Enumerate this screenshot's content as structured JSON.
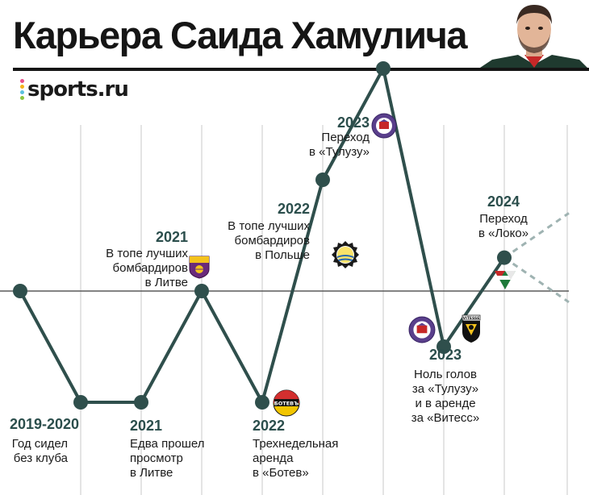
{
  "title": "Карьера Саида Хамулича",
  "brand": {
    "name": "sports.ru",
    "dot_colors": [
      "#e84e8a",
      "#f6b21a",
      "#5bc0de",
      "#8cc63f"
    ]
  },
  "colors": {
    "line": "#2f4f4c",
    "point": "#2f4f4c",
    "baseline": "#5a5a5a",
    "grid": "#c8c8c8",
    "projection": "#9fb3b2",
    "year": "#2b4e4c"
  },
  "chart_data": {
    "type": "line",
    "series": [
      {
        "points": [
          {
            "x": "",
            "y": 0
          },
          {
            "x": "2019-2020",
            "y": -1
          },
          {
            "x": "2021",
            "y": -1
          },
          {
            "x": "2021",
            "y": 0
          },
          {
            "x": "2022",
            "y": -1
          },
          {
            "x": "2022",
            "y": 1
          },
          {
            "x": "2023",
            "y": 2
          },
          {
            "x": "2023",
            "y": -0.5
          },
          {
            "x": "2024",
            "y": 0.3
          }
        ]
      }
    ],
    "projection": {
      "from": "2024",
      "y_range": [
        -0.1,
        0.7
      ],
      "style": "dashed"
    },
    "baseline_y": 0,
    "grid": true
  },
  "events": [
    {
      "year": "2019-2020",
      "lines": [
        "Год сидел",
        "без клуба"
      ],
      "badge": null
    },
    {
      "year": "2021",
      "lines": [
        "Едва прошел",
        "просмотр",
        "в Литве"
      ],
      "badge": null
    },
    {
      "year": "2021",
      "lines": [
        "В топе лучших",
        "бомбардиров",
        "в Литве"
      ],
      "badge": {
        "icon": "banga-crest-icon",
        "text": "BANGA GARGŽDAI"
      }
    },
    {
      "year": "2022",
      "lines": [
        "Трехнедельная",
        "аренда",
        "в «Ботев»"
      ],
      "badge": {
        "icon": "botev-crest-icon",
        "text": "БОТЕВЪ"
      }
    },
    {
      "year": "2022",
      "lines": [
        "В топе лучших",
        "бомбардиров",
        "в Польше"
      ],
      "badge": {
        "icon": "stal-mielec-crest-icon",
        "text": ""
      }
    },
    {
      "year": "2023",
      "lines": [
        "Переход",
        "в «Тулузу»"
      ],
      "badge": {
        "icon": "toulouse-crest-icon",
        "text": "TOULOUSE FC"
      }
    },
    {
      "year": "2023",
      "lines": [
        "Ноль голов",
        "за «Тулузу»",
        "и в аренде",
        "за «Витесс»"
      ],
      "badge": {
        "icon": "toulouse-crest-icon",
        "text": "TOULOUSE FC"
      },
      "badge2": {
        "icon": "vitesse-crest-icon",
        "text": "VITESSE"
      }
    },
    {
      "year": "2024",
      "lines": [
        "Переход",
        "в «Локо»"
      ],
      "badge": {
        "icon": "lokomotiv-crest-icon",
        "text": ""
      }
    }
  ]
}
